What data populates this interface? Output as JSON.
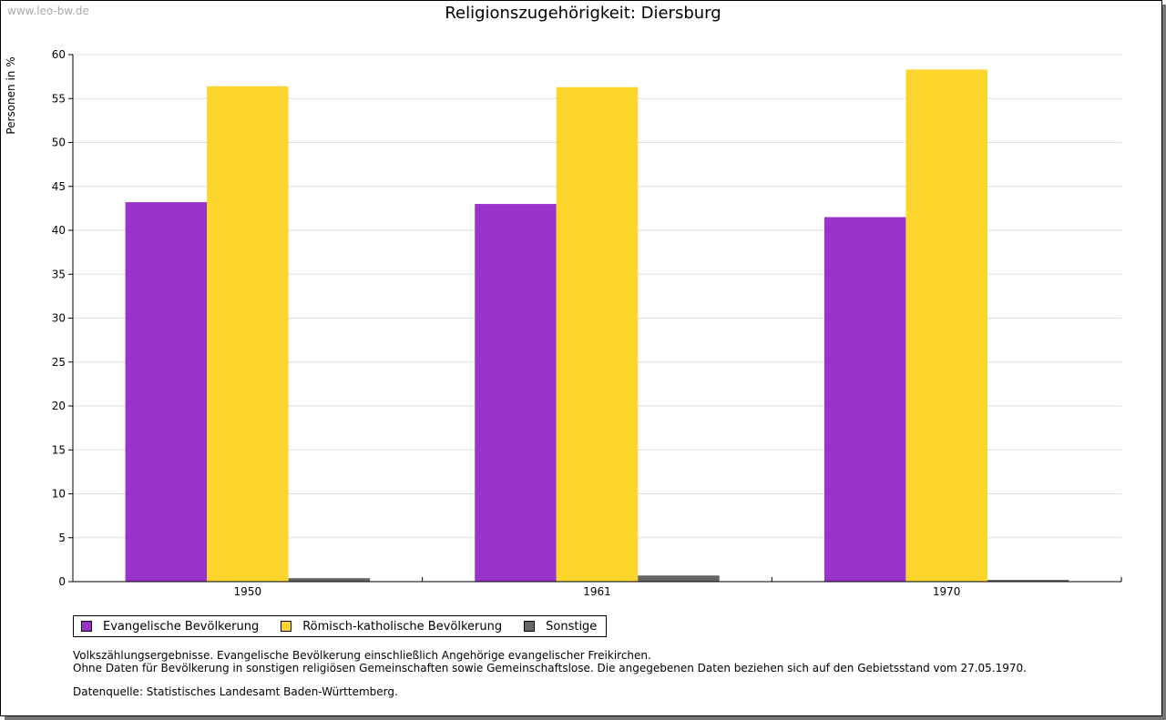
{
  "watermark": "www.leo-bw.de",
  "chart_data": {
    "type": "bar",
    "title": "Religionszugehörigkeit: Diersburg",
    "xlabel": "",
    "ylabel": "Personen in %",
    "ylim": [
      0,
      60
    ],
    "yticks": [
      0,
      5,
      10,
      15,
      20,
      25,
      30,
      35,
      40,
      45,
      50,
      55,
      60
    ],
    "grid": true,
    "legend_position": "bottom-left",
    "categories": [
      "1950",
      "1961",
      "1970"
    ],
    "series": [
      {
        "name": "Evangelische Bevölkerung",
        "color": "#9933cc",
        "values": [
          43.2,
          43.0,
          41.5
        ]
      },
      {
        "name": "Römisch-katholische Bevölkerung",
        "color": "#fcd62d",
        "values": [
          56.4,
          56.3,
          58.3
        ]
      },
      {
        "name": "Sonstige",
        "color": "#666666",
        "values": [
          0.4,
          0.7,
          0.2
        ]
      }
    ]
  },
  "notes": {
    "line1": "Volkszählungsergebnisse. Evangelische Bevölkerung einschließlich Angehörige evangelischer Freikirchen.",
    "line2": "Ohne Daten für Bevölkerung in sonstigen religiösen Gemeinschaften sowie Gemeinschaftslose. Die angegebenen Daten beziehen sich auf den Gebietsstand vom 27.05.1970.",
    "source": "Datenquelle: Statistisches Landesamt Baden-Württemberg."
  }
}
